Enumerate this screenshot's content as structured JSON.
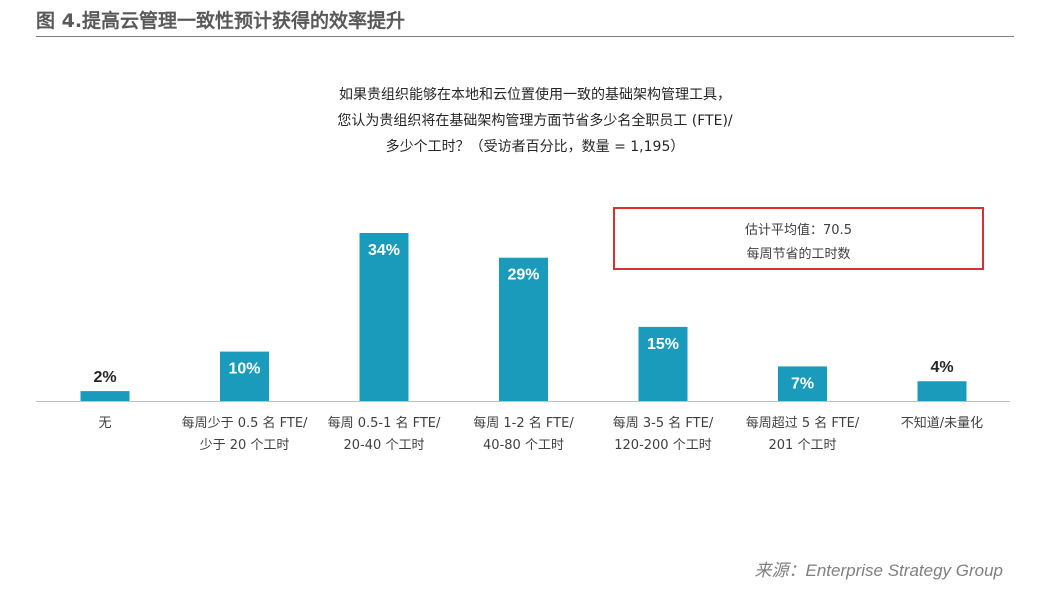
{
  "figure_title": "图 4.提高云管理一致性预计获得的效率提升",
  "question_lines": [
    "如果贵组织能够在本地和云位置使用一致的基础架构管理工具，",
    "您认为贵组织将在基础架构管理方面节省多少名全职员工 (FTE)/",
    "多少个工时？（受访者百分比，数量 = 1,195）"
  ],
  "annotation": {
    "line1": "估计平均值：70.5",
    "line2": "每周节省的工时数",
    "border_color": "#d9312e"
  },
  "source": "来源：Enterprise Strategy Group",
  "colors": {
    "bar": "#1a9bbb",
    "axis": "#bfbfbf"
  },
  "chart_data": {
    "type": "bar",
    "categories": [
      [
        "无"
      ],
      [
        "每周少于 0.5 名 FTE/",
        "少于 20 个工时"
      ],
      [
        "每周 0.5-1 名 FTE/",
        "20-40 个工时"
      ],
      [
        "每周 1-2 名 FTE/",
        "40-80 个工时"
      ],
      [
        "每周 3-5 名 FTE/",
        "120-200 个工时"
      ],
      [
        "每周超过 5 名 FTE/",
        "201 个工时"
      ],
      [
        "不知道/未量化"
      ]
    ],
    "values": [
      2,
      10,
      34,
      29,
      15,
      7,
      4
    ],
    "value_labels": [
      "2%",
      "10%",
      "34%",
      "29%",
      "15%",
      "7%",
      "4%"
    ],
    "ylim": [
      0,
      34
    ],
    "grid": false,
    "legend": "none"
  }
}
